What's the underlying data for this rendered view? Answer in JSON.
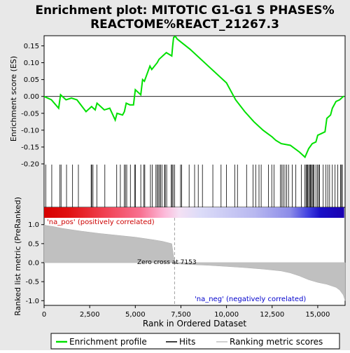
{
  "chart_data": {
    "type": "line",
    "title_line1": "Enrichment plot: MITOTIC G1-G1 S PHASES%",
    "title_line2": "REACTOME%REACT_21267.3",
    "top_panel": {
      "ylabel": "Enrichment score (ES)",
      "ylim": [
        -0.2,
        0.18
      ],
      "yticks": [
        0.15,
        0.1,
        0.05,
        0.0,
        -0.05,
        -0.1,
        -0.15,
        -0.2
      ],
      "ytick_labels": [
        "0.15",
        "0.10",
        "0.05",
        "0.00",
        "-0.05",
        "-0.10",
        "-0.15",
        "-0.20"
      ],
      "line_color": "#00e000",
      "es_profile": {
        "x": [
          0,
          400,
          800,
          900,
          1200,
          1500,
          1800,
          2300,
          2600,
          2800,
          2900,
          3300,
          3600,
          3900,
          4000,
          4300,
          4400,
          4500,
          4700,
          4900,
          5000,
          5300,
          5400,
          5500,
          5800,
          5900,
          6200,
          6300,
          6400,
          6500,
          6600,
          6700,
          7000,
          7050,
          7100,
          7200,
          7300,
          8000,
          9000,
          10000,
          10500,
          11000,
          11500,
          12000,
          12500,
          12700,
          13000,
          13500,
          14000,
          14300,
          14500,
          14700,
          14900,
          15000,
          15200,
          15400,
          15500,
          15700,
          15800,
          16000,
          16200,
          16400,
          16450
        ],
        "y": [
          0.0,
          -0.01,
          -0.035,
          0.005,
          -0.01,
          -0.005,
          -0.01,
          -0.045,
          -0.03,
          -0.04,
          -0.02,
          -0.04,
          -0.035,
          -0.07,
          -0.05,
          -0.055,
          -0.045,
          -0.02,
          -0.025,
          -0.025,
          0.02,
          0.005,
          0.05,
          0.045,
          0.09,
          0.08,
          0.1,
          0.11,
          0.115,
          0.12,
          0.125,
          0.13,
          0.12,
          0.15,
          0.175,
          0.178,
          0.17,
          0.14,
          0.09,
          0.04,
          -0.01,
          -0.045,
          -0.075,
          -0.1,
          -0.12,
          -0.13,
          -0.14,
          -0.145,
          -0.165,
          -0.18,
          -0.155,
          -0.14,
          -0.135,
          -0.115,
          -0.11,
          -0.105,
          -0.065,
          -0.055,
          -0.035,
          -0.015,
          -0.01,
          0.0,
          0.0
        ]
      }
    },
    "hits": [
      90,
      420,
      870,
      930,
      1230,
      1560,
      1880,
      2580,
      2610,
      2680,
      2890,
      3330,
      3980,
      4180,
      4400,
      4460,
      4530,
      4730,
      4960,
      5010,
      5300,
      5470,
      5520,
      5830,
      5930,
      6130,
      6200,
      6260,
      6330,
      6380,
      6460,
      6600,
      6640,
      6720,
      6970,
      7020,
      7070,
      7160,
      7480,
      7540,
      7950,
      8250,
      8450,
      8680,
      9250,
      9700,
      10000,
      10450,
      10600,
      11100,
      11450,
      11600,
      11780,
      11900,
      12300,
      12480,
      12600,
      12950,
      13030,
      13100,
      13200,
      13300,
      13400,
      13600,
      13800,
      14100,
      14300,
      14360,
      14400,
      14450,
      14500,
      14560,
      14600,
      14650,
      14700,
      14760,
      14800,
      14900,
      14980,
      15050,
      15100,
      15300,
      15450,
      15550,
      15650,
      15800,
      15950,
      16100,
      16250,
      16300,
      16350
    ],
    "heatmap_bar": {
      "stops": [
        {
          "at": 0.0,
          "color": "#d60000"
        },
        {
          "at": 0.08,
          "color": "#e01010"
        },
        {
          "at": 0.2,
          "color": "#f04050"
        },
        {
          "at": 0.32,
          "color": "#f87090"
        },
        {
          "at": 0.4,
          "color": "#fcb8d8"
        },
        {
          "at": 0.45,
          "color": "#f4e0f4"
        },
        {
          "at": 0.52,
          "color": "#dcdcf8"
        },
        {
          "at": 0.7,
          "color": "#b8b8f0"
        },
        {
          "at": 0.82,
          "color": "#8c8ce8"
        },
        {
          "at": 0.88,
          "color": "#4040e0"
        },
        {
          "at": 0.92,
          "color": "#1a10c8"
        },
        {
          "at": 1.0,
          "color": "#1a00b0"
        }
      ]
    },
    "bottom_panel": {
      "ylabel": "Ranked list metric (PreRanked)",
      "ylim": [
        -1.05,
        1.05
      ],
      "yticks": [
        1.0,
        0.5,
        0.0,
        -0.5,
        -1.0
      ],
      "ytick_labels": [
        "1.0",
        "0.5",
        "0.0",
        "-0.5",
        "-1.0"
      ],
      "pos_label": "'na_pos' (positively correlated)",
      "neg_label": "'na_neg' (negatively correlated)",
      "zero_cross_label": "Zero cross at 7153",
      "zero_cross": 7153,
      "metric": {
        "x": [
          0,
          100,
          500,
          1000,
          2000,
          3000,
          4000,
          5000,
          6000,
          6500,
          7000,
          7153,
          7200,
          8000,
          9000,
          10000,
          11000,
          12000,
          13000,
          13500,
          14000,
          14500,
          15000,
          15500,
          16000,
          16200,
          16400,
          16500
        ],
        "y": [
          1.0,
          0.98,
          0.95,
          0.9,
          0.83,
          0.77,
          0.72,
          0.67,
          0.6,
          0.56,
          0.5,
          0.0,
          -0.03,
          -0.05,
          -0.07,
          -0.1,
          -0.13,
          -0.17,
          -0.22,
          -0.27,
          -0.35,
          -0.45,
          -0.52,
          -0.57,
          -0.65,
          -0.72,
          -0.85,
          -1.0
        ]
      }
    },
    "xlabel": "Rank in Ordered Dataset",
    "xlim": [
      0,
      16500
    ],
    "xticks": [
      0,
      2500,
      5000,
      7500,
      10000,
      12500,
      15000
    ],
    "xtick_labels": [
      "0",
      "2,500",
      "5,000",
      "7,500",
      "10,000",
      "12,500",
      "15,000"
    ],
    "legend": {
      "placement": "bottom",
      "entries": [
        {
          "label": "Enrichment profile",
          "color": "#00e000"
        },
        {
          "label": "Hits",
          "color": "#000000"
        },
        {
          "label": "Ranking metric scores",
          "color": "#c0c0c0"
        }
      ]
    }
  }
}
